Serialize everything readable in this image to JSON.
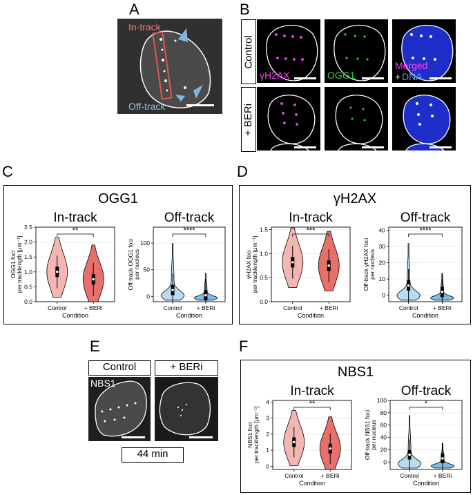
{
  "panels": {
    "A": "A",
    "B": "B",
    "C": "C",
    "D": "D",
    "E": "E",
    "F": "F"
  },
  "panel_a": {
    "in_track": "In-track",
    "off_track": "Off-track"
  },
  "panel_b": {
    "rows": [
      "Control",
      "+ BERi"
    ],
    "channels": {
      "h2ax": "γH2AX",
      "ogg1": "OGG1",
      "merged": "Merged",
      "plus": "+",
      "dna": "DNA"
    }
  },
  "panel_e": {
    "control": "Control",
    "beri": "+ BERi",
    "channel": "NBS1",
    "time": "44 min"
  },
  "colors": {
    "control_fill": "#f4b6b1",
    "beri_fill": "#e86f6a",
    "off_fill": "#b9dcf5",
    "off_fill2": "#79bde8",
    "in_track_text": "#ee7d73",
    "off_track_text": "#8fc1e6",
    "h2ax_text": "#ff3cff",
    "ogg1_text": "#3ad23a",
    "dna_text": "#5aa0ff"
  },
  "chart_data": [
    {
      "panel": "C",
      "figure_title": "OGG1",
      "type": "violin",
      "title": "In-track",
      "ylabel": "OGG1 foci per tracklength [μm⁻¹]",
      "xlabel": "Condition",
      "categories": [
        "Control",
        "+ BERi"
      ],
      "ylim": [
        0,
        2.5
      ],
      "yticks": [
        "0.0",
        "0.5",
        "1.0",
        "1.5",
        "2.0",
        "2.5"
      ],
      "medians": [
        1.0,
        0.75
      ],
      "significance": "**"
    },
    {
      "panel": "C",
      "type": "violin",
      "title": "Off-track",
      "ylabel": "Off-track OGG1 foci per nucleus",
      "xlabel": "Condition",
      "categories": [
        "Control",
        "+ BERi"
      ],
      "ylim": [
        -10,
        130
      ],
      "yticks": [
        "0",
        "50",
        "100"
      ],
      "medians": [
        12,
        2
      ],
      "significance": "****"
    },
    {
      "panel": "D",
      "figure_title": "γH2AX",
      "type": "violin",
      "title": "In-track",
      "ylabel": "γH2AX foci per tracklength [μm⁻¹]",
      "xlabel": "Condition",
      "categories": [
        "Control",
        "+ BERi"
      ],
      "ylim": [
        0,
        1.55
      ],
      "yticks": [
        "0.0",
        "0.5",
        "1.0",
        "1.5"
      ],
      "medians": [
        0.82,
        0.75
      ],
      "significance": "***"
    },
    {
      "panel": "D",
      "type": "violin",
      "title": "Off-track",
      "ylabel": "Off-track γH2AX foci per nucleus",
      "xlabel": "Condition",
      "categories": [
        "Control",
        "+ BERi"
      ],
      "ylim": [
        -4,
        42
      ],
      "yticks": [
        "0",
        "10",
        "20",
        "30",
        "40"
      ],
      "medians": [
        6,
        2
      ],
      "significance": "****"
    },
    {
      "panel": "F",
      "figure_title": "NBS1",
      "type": "violin",
      "title": "In-track",
      "ylabel": "NBS1 foci per tracklength [μm⁻¹]",
      "xlabel": "Condition",
      "categories": [
        "Control",
        "+ BERi"
      ],
      "ylim": [
        -0.2,
        4.1
      ],
      "yticks": [
        "0",
        "1",
        "2",
        "3",
        "4"
      ],
      "medians": [
        1.5,
        1.1
      ],
      "significance": "**"
    },
    {
      "panel": "F",
      "type": "violin",
      "title": "Off-track",
      "ylabel": "Off-track NBS1 foci per nucleus",
      "xlabel": "Condition",
      "categories": [
        "Control",
        "+ BERi"
      ],
      "ylim": [
        -12,
        100
      ],
      "yticks": [
        "0",
        "20",
        "40",
        "60",
        "80",
        "100"
      ],
      "medians": [
        12,
        6
      ],
      "significance": "*"
    }
  ]
}
